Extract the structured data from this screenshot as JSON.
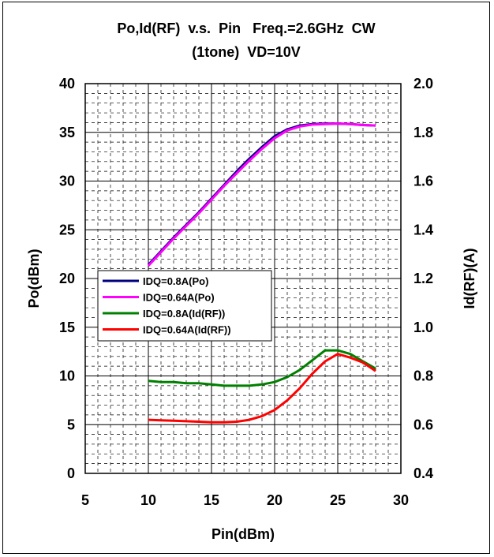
{
  "chart_data": {
    "type": "line",
    "title_line1": "Po,Id(RF)  v.s.  Pin   Freq.=2.6GHz  CW",
    "title_line2": "(1tone)  VD=10V",
    "xlabel": "Pin(dBm)",
    "ylabel": "Po(dBm)",
    "y2label": "Id(RF)(A)",
    "xlim": [
      5,
      30
    ],
    "ylim": [
      0,
      40
    ],
    "y2lim": [
      0.4,
      2.0
    ],
    "x_ticks": [
      "5",
      "10",
      "15",
      "20",
      "25",
      "30"
    ],
    "y_ticks": [
      "0",
      "5",
      "10",
      "15",
      "20",
      "25",
      "30",
      "35",
      "40"
    ],
    "y2_ticks": [
      "0.4",
      "0.6",
      "0.8",
      "1.0",
      "1.2",
      "1.4",
      "1.6",
      "1.8",
      "2.0"
    ],
    "grid": true,
    "legend_position": "middle-left",
    "series": [
      {
        "name": "IDQ=0.8A(Po)",
        "axis": "left",
        "color": "#00007F",
        "points": [
          [
            10,
            21.4
          ],
          [
            11,
            22.8
          ],
          [
            12,
            24.2
          ],
          [
            13,
            25.5
          ],
          [
            14,
            26.8
          ],
          [
            15,
            28.2
          ],
          [
            16,
            29.6
          ],
          [
            17,
            31.0
          ],
          [
            18,
            32.3
          ],
          [
            19,
            33.5
          ],
          [
            20,
            34.6
          ],
          [
            21,
            35.3
          ],
          [
            22,
            35.7
          ],
          [
            23,
            35.85
          ],
          [
            24,
            35.9
          ],
          [
            25,
            35.9
          ],
          [
            26,
            35.85
          ],
          [
            27,
            35.75
          ],
          [
            28,
            35.7
          ]
        ]
      },
      {
        "name": "IDQ=0.64A(Po)",
        "axis": "left",
        "color": "#FF00FF",
        "points": [
          [
            10,
            21.3
          ],
          [
            11,
            22.7
          ],
          [
            12,
            24.1
          ],
          [
            13,
            25.4
          ],
          [
            14,
            26.7
          ],
          [
            15,
            28.1
          ],
          [
            16,
            29.5
          ],
          [
            17,
            30.8
          ],
          [
            18,
            32.1
          ],
          [
            19,
            33.3
          ],
          [
            20,
            34.4
          ],
          [
            21,
            35.2
          ],
          [
            22,
            35.6
          ],
          [
            23,
            35.8
          ],
          [
            24,
            35.85
          ],
          [
            25,
            35.9
          ],
          [
            26,
            35.85
          ],
          [
            27,
            35.75
          ],
          [
            28,
            35.7
          ]
        ]
      },
      {
        "name": "IDQ=0.8A(Id(RF))",
        "axis": "right",
        "color": "#008000",
        "points": [
          [
            10,
            0.78
          ],
          [
            11,
            0.775
          ],
          [
            12,
            0.775
          ],
          [
            13,
            0.77
          ],
          [
            14,
            0.77
          ],
          [
            15,
            0.765
          ],
          [
            16,
            0.76
          ],
          [
            17,
            0.76
          ],
          [
            18,
            0.76
          ],
          [
            19,
            0.765
          ],
          [
            20,
            0.775
          ],
          [
            21,
            0.795
          ],
          [
            22,
            0.825
          ],
          [
            23,
            0.865
          ],
          [
            24,
            0.905
          ],
          [
            25,
            0.905
          ],
          [
            26,
            0.89
          ],
          [
            27,
            0.86
          ],
          [
            28,
            0.83
          ]
        ]
      },
      {
        "name": "IDQ=0.64A(Id(RF))",
        "axis": "right",
        "color": "#FF0000",
        "points": [
          [
            10,
            0.62
          ],
          [
            11,
            0.618
          ],
          [
            12,
            0.616
          ],
          [
            13,
            0.614
          ],
          [
            14,
            0.612
          ],
          [
            15,
            0.61
          ],
          [
            16,
            0.61
          ],
          [
            17,
            0.612
          ],
          [
            18,
            0.62
          ],
          [
            19,
            0.635
          ],
          [
            20,
            0.66
          ],
          [
            21,
            0.7
          ],
          [
            22,
            0.75
          ],
          [
            23,
            0.81
          ],
          [
            24,
            0.86
          ],
          [
            25,
            0.89
          ],
          [
            26,
            0.875
          ],
          [
            27,
            0.855
          ],
          [
            28,
            0.82
          ]
        ]
      }
    ]
  }
}
